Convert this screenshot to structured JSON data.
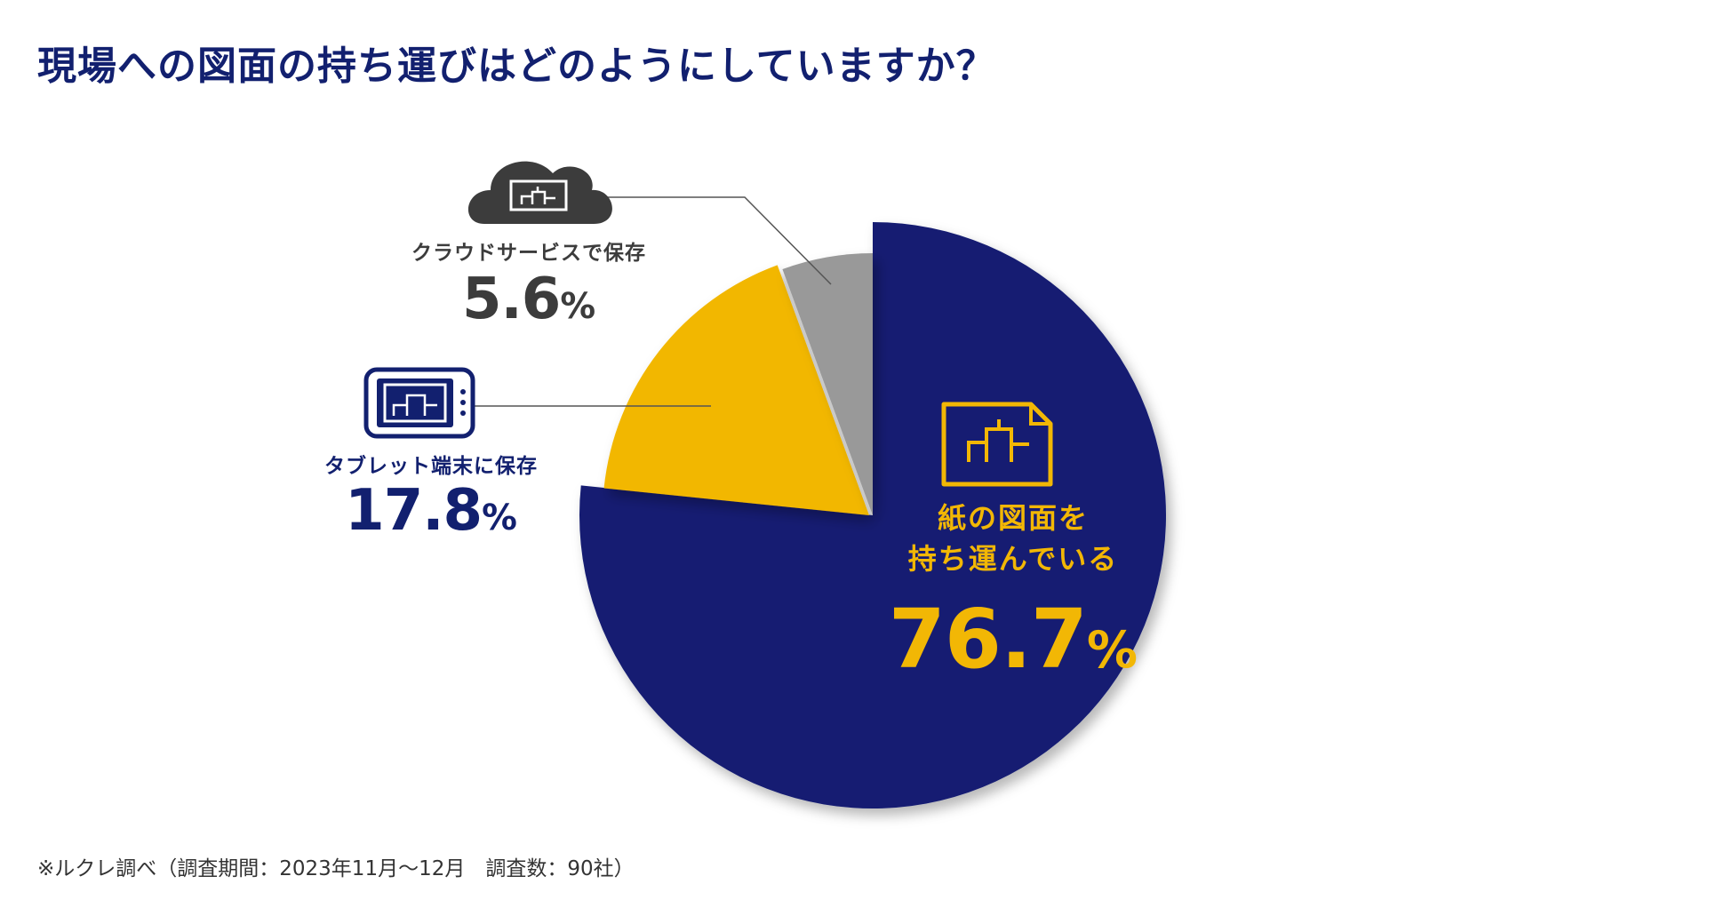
{
  "title": "現場への図面の持ち運びはどのようにしていますか？",
  "colors": {
    "title": "#12206f",
    "paper": "#131e72",
    "tablet": "#f2b705",
    "cloud": "#999999",
    "cloud_text": "#3c3c3c"
  },
  "chart_data": {
    "type": "pie",
    "title": "現場への図面の持ち運びはどのようにしていますか？",
    "unit": "%",
    "start": "12 o'clock, clockwise",
    "slices": [
      {
        "key": "paper",
        "name_lines": [
          "紙の図面を",
          "持ち運んでいる"
        ],
        "value": 76.7,
        "color": "#131e72",
        "text_color": "#f2b705",
        "icon": "paper-blueprint-icon"
      },
      {
        "key": "tablet",
        "name_lines": [
          "タブレット端末に保存"
        ],
        "value": 17.8,
        "color": "#f2b705",
        "text_color": "#12206f",
        "icon": "tablet-icon"
      },
      {
        "key": "cloud",
        "name_lines": [
          "クラウドサービスで保存"
        ],
        "value": 5.6,
        "color": "#999999",
        "text_color": "#3c3c3c",
        "icon": "cloud-icon"
      }
    ]
  },
  "labels": {
    "cloud": {
      "name": "クラウドサービスで保存",
      "value": "5.6",
      "unit": "%"
    },
    "tablet": {
      "name": "タブレット端末に保存",
      "value": "17.8",
      "unit": "%"
    },
    "paper": {
      "line1": "紙の図面を",
      "line2": "持ち運んでいる",
      "value": "76.7",
      "unit": "%"
    }
  },
  "footnote": "※ルクレ調べ（調査期間：2023年11月〜12月　調査数：90社）"
}
